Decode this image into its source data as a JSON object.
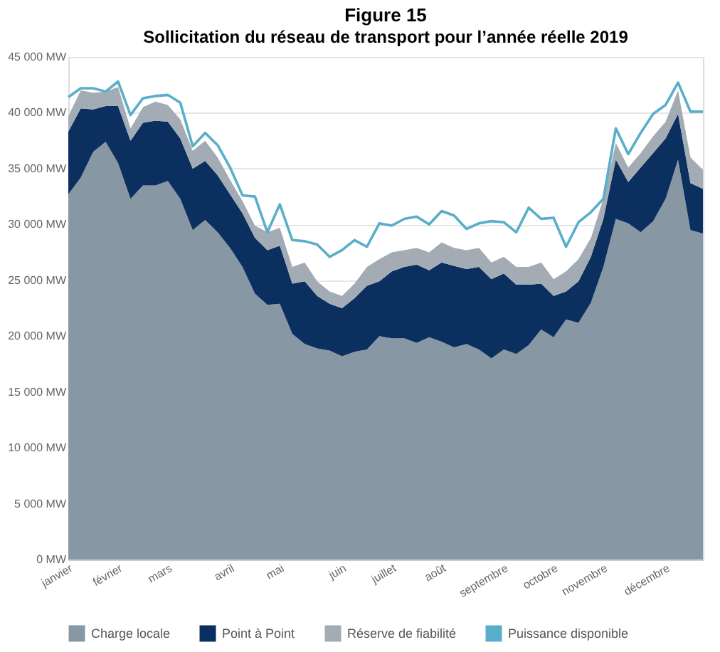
{
  "chart_data": {
    "type": "area",
    "stacked": true,
    "title": "Figure 15",
    "subtitle": "Sollicitation du réseau de transport pour l’année réelle 2019",
    "categories": [
      "janvier",
      null,
      null,
      null,
      "février",
      null,
      null,
      null,
      "mars",
      null,
      null,
      null,
      null,
      "avril",
      null,
      null,
      null,
      "mai",
      null,
      null,
      null,
      null,
      "juin",
      null,
      null,
      null,
      "juillet",
      null,
      null,
      null,
      "août",
      null,
      null,
      null,
      null,
      "septembre",
      null,
      null,
      null,
      "octobre",
      null,
      null,
      null,
      "novembre",
      null,
      null,
      null,
      null,
      "décembre",
      null,
      null,
      null
    ],
    "ylim": [
      0,
      45000
    ],
    "yticks": [
      {
        "value": 0,
        "label": "0 MW"
      },
      {
        "value": 5000,
        "label": "5 000 MW"
      },
      {
        "value": 10000,
        "label": "10 000 MW"
      },
      {
        "value": 15000,
        "label": "15 000 MW"
      },
      {
        "value": 20000,
        "label": "20 000 MW"
      },
      {
        "value": 25000,
        "label": "25 000 MW"
      },
      {
        "value": 30000,
        "label": "30 000 MW"
      },
      {
        "value": 35000,
        "label": "35 000 MW"
      },
      {
        "value": 40000,
        "label": "40 000 MW"
      },
      {
        "value": 45000,
        "label": "45 000 MW"
      }
    ],
    "grid": "y",
    "legend": "bottom",
    "series": [
      {
        "name": "Charge locale",
        "color": "#8797a4",
        "values": [
          32700,
          34200,
          36500,
          37400,
          35500,
          32300,
          33500,
          33500,
          33900,
          32300,
          29500,
          30400,
          29300,
          27900,
          26200,
          23800,
          22800,
          22900,
          20200,
          19300,
          18900,
          18700,
          18200,
          18600,
          18800,
          20000,
          19800,
          19800,
          19400,
          19900,
          19500,
          19000,
          19300,
          18800,
          18000,
          18800,
          18400,
          19200,
          20600,
          19900,
          21500,
          21200,
          23000,
          26200,
          30500,
          30100,
          29300,
          30300,
          32300,
          35800,
          29500,
          29200
        ]
      },
      {
        "name": "Point à Point",
        "color": "#0b2f5e",
        "values": [
          5600,
          6200,
          3800,
          3200,
          5100,
          5200,
          5600,
          5800,
          5300,
          5400,
          5500,
          5300,
          5100,
          4800,
          4800,
          5000,
          4900,
          5200,
          4500,
          5600,
          4700,
          4200,
          4300,
          4800,
          5700,
          4900,
          6000,
          6400,
          7000,
          6000,
          7100,
          7300,
          6700,
          7400,
          7100,
          6800,
          6200,
          5400,
          4100,
          3700,
          2500,
          3700,
          4100,
          4300,
          5300,
          3700,
          5800,
          6100,
          5400,
          4100,
          4200,
          4000
        ]
      },
      {
        "name": "Réserve de fiabilité",
        "color": "#a3acb5",
        "values": [
          1400,
          1600,
          1500,
          1300,
          1700,
          1100,
          1400,
          1700,
          1500,
          1700,
          1600,
          1800,
          1600,
          1300,
          1100,
          1100,
          1600,
          1600,
          1500,
          1700,
          1300,
          1100,
          1100,
          1300,
          1700,
          2000,
          1700,
          1500,
          1500,
          1600,
          1800,
          1600,
          1700,
          1700,
          1500,
          1500,
          1600,
          1600,
          1900,
          1500,
          1800,
          2000,
          1700,
          1800,
          1500,
          1300,
          1300,
          1500,
          1500,
          2100,
          2300,
          1700
        ]
      },
      {
        "name": "Puissance disponible",
        "type": "line",
        "color": "#5aaec9",
        "values": [
          41400,
          42200,
          42200,
          41900,
          42800,
          39800,
          41300,
          41500,
          41600,
          40900,
          37000,
          38200,
          37100,
          35100,
          32600,
          32500,
          29300,
          31800,
          28600,
          28500,
          28200,
          27100,
          27700,
          28600,
          28000,
          30100,
          29900,
          30500,
          30700,
          30000,
          31200,
          30800,
          29600,
          30100,
          30300,
          30200,
          29300,
          31500,
          30500,
          30600,
          28000,
          30200,
          31100,
          32300,
          38600,
          36300,
          38200,
          39900,
          40700,
          42700,
          40100,
          40100
        ]
      }
    ]
  }
}
